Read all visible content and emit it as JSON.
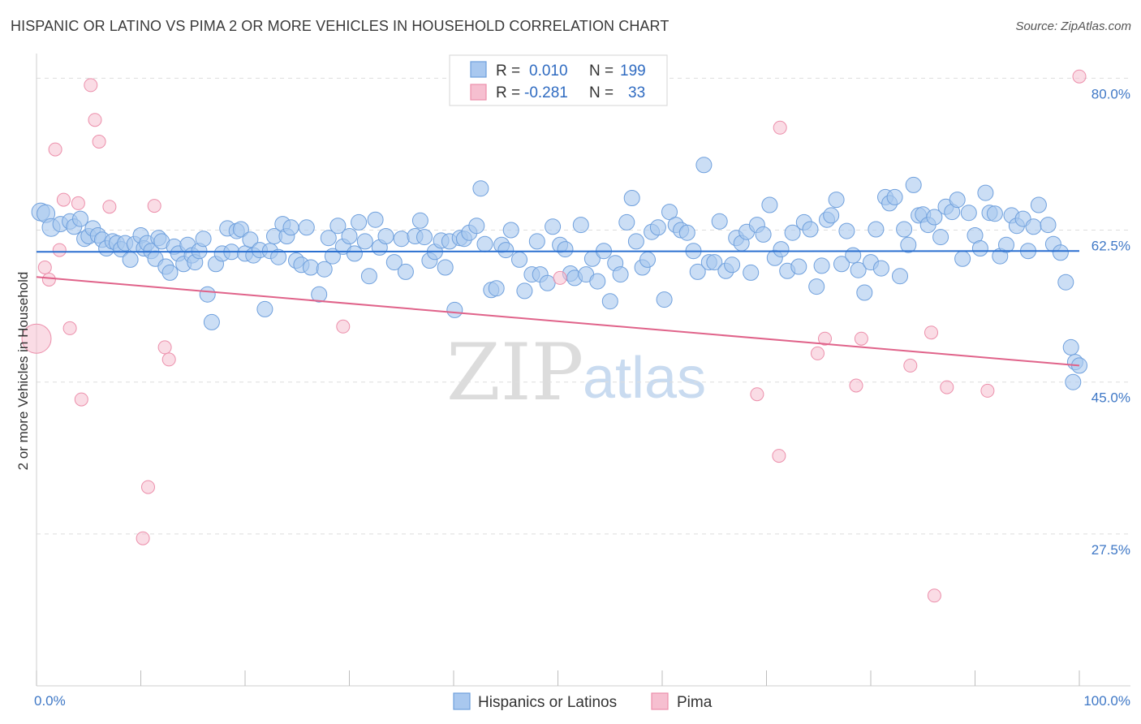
{
  "header": {
    "title": "HISPANIC OR LATINO VS PIMA 2 OR MORE VEHICLES IN HOUSEHOLD CORRELATION CHART",
    "source": "Source: ZipAtlas.com"
  },
  "watermark": {
    "zip": "ZIP",
    "atlas": "atlas"
  },
  "legend": {
    "rows": [
      {
        "r_label": "R =",
        "r_value": "0.010",
        "n_label": "N =",
        "n_value": "199",
        "color": "#a9c8ef",
        "stroke": "#6fa0dd"
      },
      {
        "r_label": "R =",
        "r_value": "-0.281",
        "n_label": "N =",
        "n_value": "33",
        "color": "#f6bfd0",
        "stroke": "#ec8fab"
      }
    ]
  },
  "bottom_legend": {
    "items": [
      {
        "label": "Hispanics or Latinos",
        "color": "#a9c8ef",
        "stroke": "#6fa0dd"
      },
      {
        "label": "Pima",
        "color": "#f6bfd0",
        "stroke": "#ec8fab"
      }
    ]
  },
  "chart_data": {
    "type": "scatter",
    "title": "HISPANIC OR LATINO VS PIMA 2 OR MORE VEHICLES IN HOUSEHOLD CORRELATION CHART",
    "ylabel": "2 or more Vehicles in Household",
    "xlabel": "",
    "xlim": [
      0,
      100
    ],
    "ylim": [
      10,
      82
    ],
    "x_tick_labels": [
      "0.0%",
      "100.0%"
    ],
    "y_ticks": [
      27.5,
      45.0,
      62.5,
      80.0
    ],
    "y_tick_labels": [
      "27.5%",
      "45.0%",
      "62.5%",
      "80.0%"
    ],
    "grid": true,
    "legend_position": "top-center",
    "series": [
      {
        "name": "Hispanics or Latinos",
        "color": "#a9c8ef",
        "stroke": "#6fa0dd",
        "trend": {
          "x": [
            0,
            100
          ],
          "y": [
            60.0,
            60.1
          ]
        },
        "points": [
          [
            0.4,
            64.6
          ],
          [
            0.9,
            64.4
          ],
          [
            1.4,
            62.8
          ],
          [
            2.3,
            63.2
          ],
          [
            3.2,
            63.5
          ],
          [
            3.6,
            62.9
          ],
          [
            4.2,
            63.8
          ],
          [
            4.6,
            61.5
          ],
          [
            5.0,
            61.8
          ],
          [
            5.4,
            62.7
          ],
          [
            5.9,
            61.9
          ],
          [
            6.3,
            61.4
          ],
          [
            6.7,
            60.4
          ],
          [
            7.3,
            61.2
          ],
          [
            7.7,
            61.0
          ],
          [
            8.1,
            60.3
          ],
          [
            8.5,
            61.0
          ],
          [
            9.0,
            59.1
          ],
          [
            9.4,
            60.9
          ],
          [
            10.0,
            61.9
          ],
          [
            10.3,
            60.4
          ],
          [
            10.6,
            61.0
          ],
          [
            11.0,
            60.1
          ],
          [
            11.4,
            59.2
          ],
          [
            11.7,
            61.6
          ],
          [
            12.0,
            61.2
          ],
          [
            12.4,
            58.3
          ],
          [
            12.8,
            57.6
          ],
          [
            13.2,
            60.6
          ],
          [
            13.6,
            59.8
          ],
          [
            14.1,
            58.6
          ],
          [
            14.5,
            60.8
          ],
          [
            14.9,
            59.6
          ],
          [
            15.2,
            58.8
          ],
          [
            15.6,
            60.1
          ],
          [
            16.0,
            61.5
          ],
          [
            16.4,
            55.1
          ],
          [
            16.8,
            51.9
          ],
          [
            17.2,
            58.6
          ],
          [
            17.8,
            59.8
          ],
          [
            18.3,
            62.7
          ],
          [
            18.7,
            60.0
          ],
          [
            19.2,
            62.4
          ],
          [
            19.6,
            62.6
          ],
          [
            20.0,
            59.8
          ],
          [
            20.5,
            61.4
          ],
          [
            20.8,
            59.6
          ],
          [
            21.4,
            60.2
          ],
          [
            21.9,
            53.4
          ],
          [
            22.4,
            60.1
          ],
          [
            22.8,
            61.8
          ],
          [
            23.2,
            59.4
          ],
          [
            23.6,
            63.2
          ],
          [
            24.0,
            61.8
          ],
          [
            24.4,
            62.8
          ],
          [
            24.9,
            59.0
          ],
          [
            25.4,
            58.5
          ],
          [
            25.9,
            62.8
          ],
          [
            26.3,
            58.2
          ],
          [
            27.1,
            55.1
          ],
          [
            27.6,
            58.0
          ],
          [
            28.0,
            61.6
          ],
          [
            28.4,
            59.5
          ],
          [
            28.9,
            63.0
          ],
          [
            29.4,
            60.6
          ],
          [
            30.0,
            61.8
          ],
          [
            30.5,
            59.8
          ],
          [
            30.9,
            63.4
          ],
          [
            31.5,
            61.2
          ],
          [
            31.9,
            57.2
          ],
          [
            32.5,
            63.7
          ],
          [
            32.9,
            60.5
          ],
          [
            33.5,
            61.8
          ],
          [
            34.3,
            58.8
          ],
          [
            35.0,
            61.5
          ],
          [
            35.4,
            57.7
          ],
          [
            36.3,
            61.8
          ],
          [
            36.8,
            63.6
          ],
          [
            37.2,
            61.7
          ],
          [
            37.7,
            59.0
          ],
          [
            38.2,
            60.0
          ],
          [
            38.8,
            61.3
          ],
          [
            39.2,
            58.2
          ],
          [
            39.6,
            61.2
          ],
          [
            40.1,
            53.3
          ],
          [
            40.6,
            61.6
          ],
          [
            41.0,
            61.5
          ],
          [
            41.5,
            62.2
          ],
          [
            42.2,
            63.0
          ],
          [
            42.6,
            67.3
          ],
          [
            43.0,
            60.9
          ],
          [
            43.6,
            55.6
          ],
          [
            44.1,
            55.8
          ],
          [
            44.6,
            60.8
          ],
          [
            45.0,
            60.2
          ],
          [
            45.5,
            62.5
          ],
          [
            46.3,
            59.1
          ],
          [
            46.8,
            55.5
          ],
          [
            47.5,
            57.4
          ],
          [
            48.0,
            61.2
          ],
          [
            48.3,
            57.4
          ],
          [
            49.0,
            56.4
          ],
          [
            49.5,
            62.9
          ],
          [
            50.2,
            60.8
          ],
          [
            50.7,
            60.3
          ],
          [
            51.2,
            57.5
          ],
          [
            51.6,
            57.0
          ],
          [
            52.2,
            63.1
          ],
          [
            52.7,
            57.4
          ],
          [
            53.3,
            59.2
          ],
          [
            53.8,
            56.6
          ],
          [
            54.4,
            60.1
          ],
          [
            55.0,
            54.3
          ],
          [
            55.5,
            58.7
          ],
          [
            56.0,
            57.4
          ],
          [
            56.6,
            63.4
          ],
          [
            57.1,
            66.2
          ],
          [
            57.5,
            61.2
          ],
          [
            58.1,
            58.2
          ],
          [
            58.6,
            59.1
          ],
          [
            59.0,
            62.3
          ],
          [
            59.6,
            62.8
          ],
          [
            60.2,
            54.5
          ],
          [
            60.7,
            64.6
          ],
          [
            61.3,
            63.1
          ],
          [
            61.8,
            62.5
          ],
          [
            62.4,
            62.2
          ],
          [
            63.0,
            60.1
          ],
          [
            63.4,
            57.7
          ],
          [
            64.0,
            70.0
          ],
          [
            64.5,
            58.8
          ],
          [
            65.0,
            58.8
          ],
          [
            65.5,
            63.5
          ],
          [
            66.1,
            57.8
          ],
          [
            66.7,
            58.5
          ],
          [
            67.1,
            61.6
          ],
          [
            67.6,
            61.0
          ],
          [
            68.1,
            62.3
          ],
          [
            68.5,
            57.6
          ],
          [
            69.1,
            63.1
          ],
          [
            69.7,
            62.0
          ],
          [
            70.3,
            65.4
          ],
          [
            70.8,
            59.3
          ],
          [
            71.4,
            60.3
          ],
          [
            72.0,
            57.8
          ],
          [
            72.5,
            62.2
          ],
          [
            73.1,
            58.3
          ],
          [
            73.6,
            63.4
          ],
          [
            74.2,
            62.6
          ],
          [
            74.8,
            56.0
          ],
          [
            75.3,
            58.4
          ],
          [
            75.8,
            63.7
          ],
          [
            76.2,
            64.2
          ],
          [
            76.7,
            66.0
          ],
          [
            77.2,
            58.6
          ],
          [
            77.7,
            62.4
          ],
          [
            78.3,
            59.6
          ],
          [
            78.8,
            57.9
          ],
          [
            79.4,
            55.3
          ],
          [
            80.0,
            58.8
          ],
          [
            80.5,
            62.6
          ],
          [
            81.0,
            58.1
          ],
          [
            81.4,
            66.3
          ],
          [
            81.8,
            65.6
          ],
          [
            82.3,
            66.3
          ],
          [
            82.8,
            57.2
          ],
          [
            83.2,
            62.6
          ],
          [
            83.6,
            60.8
          ],
          [
            84.1,
            67.7
          ],
          [
            84.6,
            64.2
          ],
          [
            85.0,
            64.3
          ],
          [
            85.5,
            63.1
          ],
          [
            86.1,
            64.0
          ],
          [
            86.7,
            61.7
          ],
          [
            87.2,
            65.2
          ],
          [
            87.8,
            64.6
          ],
          [
            88.3,
            66.0
          ],
          [
            88.8,
            59.2
          ],
          [
            89.4,
            64.5
          ],
          [
            90.0,
            61.9
          ],
          [
            90.5,
            60.4
          ],
          [
            91.0,
            66.8
          ],
          [
            91.4,
            64.5
          ],
          [
            91.9,
            64.4
          ],
          [
            92.4,
            59.5
          ],
          [
            93.0,
            60.8
          ],
          [
            93.5,
            64.2
          ],
          [
            94.0,
            63.0
          ],
          [
            94.6,
            63.8
          ],
          [
            95.1,
            60.1
          ],
          [
            95.6,
            62.9
          ],
          [
            96.1,
            65.4
          ],
          [
            97.0,
            63.1
          ],
          [
            97.5,
            60.9
          ],
          [
            98.2,
            59.9
          ],
          [
            98.7,
            56.5
          ],
          [
            99.2,
            49.0
          ],
          [
            99.6,
            47.3
          ],
          [
            100.0,
            46.9
          ],
          [
            99.4,
            45.0
          ]
        ]
      },
      {
        "name": "Pima",
        "color": "#f6bfd0",
        "stroke": "#ec8fab",
        "trend": {
          "x": [
            0,
            100
          ],
          "y": [
            57.1,
            46.9
          ]
        },
        "points": [
          [
            0.0,
            50.0
          ],
          [
            0.8,
            58.2
          ],
          [
            1.2,
            56.8
          ],
          [
            1.8,
            71.8
          ],
          [
            2.2,
            60.2
          ],
          [
            2.6,
            66.0
          ],
          [
            3.2,
            51.2
          ],
          [
            4.0,
            65.6
          ],
          [
            4.3,
            43.0
          ],
          [
            5.2,
            79.2
          ],
          [
            5.6,
            75.2
          ],
          [
            6.0,
            72.7
          ],
          [
            7.0,
            65.2
          ],
          [
            10.7,
            32.9
          ],
          [
            10.2,
            27.0
          ],
          [
            11.3,
            65.3
          ],
          [
            12.3,
            49.0
          ],
          [
            12.7,
            47.6
          ],
          [
            29.4,
            51.4
          ],
          [
            50.2,
            57.0
          ],
          [
            69.1,
            43.6
          ],
          [
            71.2,
            36.5
          ],
          [
            71.3,
            74.3
          ],
          [
            74.9,
            48.3
          ],
          [
            75.6,
            50.0
          ],
          [
            78.6,
            44.6
          ],
          [
            79.1,
            50.0
          ],
          [
            83.8,
            46.9
          ],
          [
            85.8,
            50.7
          ],
          [
            86.1,
            20.4
          ],
          [
            87.3,
            44.4
          ],
          [
            91.2,
            44.0
          ],
          [
            100.0,
            80.2
          ]
        ]
      }
    ]
  }
}
